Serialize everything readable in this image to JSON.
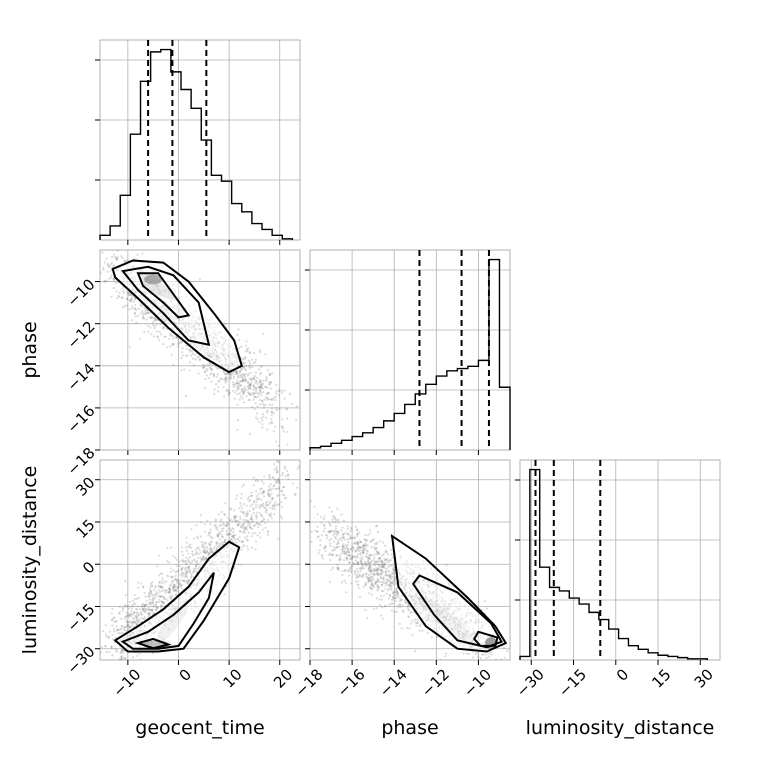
{
  "chart_data": {
    "type": "corner",
    "parameters": [
      "geocent_time",
      "phase",
      "luminosity_distance"
    ],
    "axes_labels": {
      "x": [
        "geocent_time",
        "phase",
        "luminosity_distance"
      ],
      "y": [
        "",
        "phase",
        "luminosity_distance"
      ]
    },
    "ranges": {
      "geocent_time": [
        -15.5,
        24
      ],
      "phase": [
        -18,
        -8.5
      ],
      "luminosity_distance": [
        -34,
        37
      ]
    },
    "ticks": {
      "geocent_time": [
        -10,
        0,
        10,
        20
      ],
      "phase": [
        -18,
        -16,
        -14,
        -12,
        -10
      ],
      "luminosity_distance": [
        -30,
        -15,
        0,
        15,
        30
      ]
    },
    "tick_labels": {
      "geocent_time": [
        "−10",
        "0",
        "10",
        "20"
      ],
      "phase": [
        "−18",
        "−16",
        "−14",
        "−12",
        "−10"
      ],
      "luminosity_distance": [
        "−30",
        "−15",
        "0",
        "15",
        "30"
      ]
    },
    "quantiles": {
      "geocent_time": [
        -6,
        -1.2,
        5.5
      ],
      "phase": [
        -12.8,
        -10.8,
        -9.5
      ],
      "luminosity_distance": [
        -28.5,
        -22,
        -5.5
      ]
    },
    "histograms": {
      "geocent_time": {
        "edges": [
          -15.5,
          -13.5,
          -11.5,
          -9.5,
          -7.5,
          -5.5,
          -3.5,
          -1.5,
          0.5,
          2.5,
          4.5,
          6.5,
          8.5,
          10.5,
          12.5,
          14.5,
          16.5,
          18.5,
          20.5,
          22.5
        ],
        "counts": [
          4,
          12,
          38,
          90,
          135,
          160,
          162,
          143,
          128,
          112,
          85,
          55,
          50,
          31,
          24,
          14,
          9,
          4,
          1
        ]
      },
      "phase": {
        "edges": [
          -18,
          -17.5,
          -17,
          -16.5,
          -16,
          -15.5,
          -15,
          -14.5,
          -14,
          -13.5,
          -13,
          -12.5,
          -12,
          -11.5,
          -11,
          -10.5,
          -10,
          -9.5,
          -9,
          -8.5
        ],
        "counts": [
          3,
          5,
          9,
          13,
          18,
          23,
          30,
          39,
          49,
          61,
          75,
          88,
          99,
          106,
          109,
          112,
          120,
          255,
          84
        ]
      },
      "luminosity_distance": {
        "edges": [
          -34,
          -30.5,
          -27,
          -23.5,
          -20,
          -16.5,
          -13,
          -9.5,
          -6,
          -2.5,
          1,
          4.5,
          8,
          11.5,
          15,
          18.5,
          22,
          25.5,
          29,
          32.5
        ],
        "counts": [
          3,
          160,
          78,
          61,
          58,
          52,
          47,
          40,
          34,
          26,
          18,
          12,
          9,
          6,
          4,
          3,
          2,
          1,
          1
        ]
      }
    },
    "grid": true,
    "scatter_color": "#7f7f7f",
    "line_color": "#000000",
    "quantile_line_style": "dashed"
  }
}
